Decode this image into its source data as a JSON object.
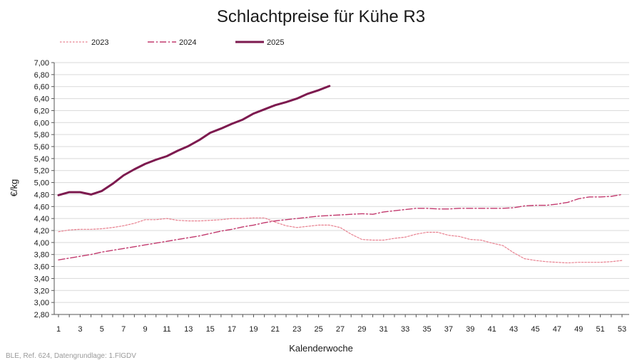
{
  "chart_data": {
    "type": "line",
    "title": "Schlachtpreise für Kühe R3",
    "xlabel": "Kalenderwoche",
    "ylabel": "€/kg",
    "source": "BLE, Ref. 624, Datengrundlage: 1.FlGDV",
    "xlim": [
      1,
      53
    ],
    "ylim": [
      2.8,
      7.0
    ],
    "y_tick_step": 0.2,
    "x_ticks": [
      1,
      3,
      5,
      7,
      9,
      11,
      13,
      15,
      17,
      19,
      21,
      23,
      25,
      27,
      29,
      31,
      33,
      35,
      37,
      39,
      41,
      43,
      45,
      47,
      49,
      51,
      53
    ],
    "grid": "horizontal",
    "legend_position": "top-left",
    "series": [
      {
        "name": "2023",
        "style": "dotted",
        "color": "#e8808f",
        "x": [
          1,
          2,
          3,
          4,
          5,
          6,
          7,
          8,
          9,
          10,
          11,
          12,
          13,
          14,
          15,
          16,
          17,
          18,
          19,
          20,
          21,
          22,
          23,
          24,
          25,
          26,
          27,
          28,
          29,
          30,
          31,
          32,
          33,
          34,
          35,
          36,
          37,
          38,
          39,
          40,
          41,
          42,
          43,
          44,
          45,
          46,
          47,
          48,
          49,
          50,
          51,
          52,
          53
        ],
        "values": [
          4.18,
          4.21,
          4.22,
          4.22,
          4.23,
          4.25,
          4.28,
          4.32,
          4.38,
          4.38,
          4.4,
          4.37,
          4.36,
          4.36,
          4.37,
          4.38,
          4.4,
          4.4,
          4.41,
          4.41,
          4.34,
          4.28,
          4.25,
          4.27,
          4.29,
          4.29,
          4.25,
          4.14,
          4.05,
          4.04,
          4.04,
          4.07,
          4.09,
          4.14,
          4.17,
          4.17,
          4.12,
          4.1,
          4.05,
          4.04,
          3.99,
          3.95,
          3.83,
          3.73,
          3.7,
          3.68,
          3.67,
          3.66,
          3.67,
          3.67,
          3.67,
          3.68,
          3.7
        ]
      },
      {
        "name": "2024",
        "style": "dash-dot",
        "color": "#c23a6e",
        "x": [
          1,
          2,
          3,
          4,
          5,
          6,
          7,
          8,
          9,
          10,
          11,
          12,
          13,
          14,
          15,
          16,
          17,
          18,
          19,
          20,
          21,
          22,
          23,
          24,
          25,
          26,
          27,
          28,
          29,
          30,
          31,
          32,
          33,
          34,
          35,
          36,
          37,
          38,
          39,
          40,
          41,
          42,
          43,
          44,
          45,
          46,
          47,
          48,
          49,
          50,
          51,
          52,
          53
        ],
        "values": [
          3.71,
          3.74,
          3.77,
          3.8,
          3.84,
          3.87,
          3.9,
          3.93,
          3.96,
          3.99,
          4.02,
          4.05,
          4.08,
          4.11,
          4.15,
          4.19,
          4.22,
          4.26,
          4.29,
          4.33,
          4.36,
          4.38,
          4.4,
          4.42,
          4.44,
          4.45,
          4.46,
          4.47,
          4.48,
          4.47,
          4.51,
          4.53,
          4.55,
          4.57,
          4.57,
          4.56,
          4.56,
          4.57,
          4.57,
          4.57,
          4.57,
          4.57,
          4.58,
          4.61,
          4.62,
          4.62,
          4.64,
          4.67,
          4.73,
          4.76,
          4.76,
          4.77,
          4.8
        ]
      },
      {
        "name": "2025",
        "style": "solid",
        "color": "#7d1a4f",
        "x": [
          1,
          2,
          3,
          4,
          5,
          6,
          7,
          8,
          9,
          10,
          11,
          12,
          13,
          14,
          15,
          16,
          17,
          18,
          19,
          20,
          21,
          22,
          23,
          24,
          25,
          26
        ],
        "values": [
          4.79,
          4.84,
          4.84,
          4.8,
          4.86,
          4.98,
          5.12,
          5.22,
          5.31,
          5.38,
          5.44,
          5.53,
          5.61,
          5.71,
          5.83,
          5.9,
          5.98,
          6.05,
          6.15,
          6.22,
          6.29,
          6.34,
          6.4,
          6.48,
          6.54,
          6.61
        ]
      }
    ]
  }
}
